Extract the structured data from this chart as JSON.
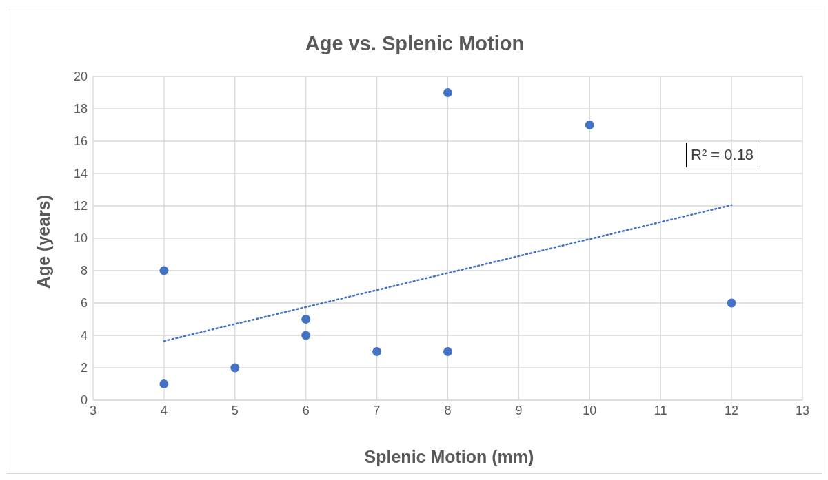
{
  "chart_data": {
    "type": "scatter",
    "title": "Age vs. Splenic Motion",
    "xlabel": "Splenic Motion (mm)",
    "ylabel": "Age (years)",
    "x": [
      4,
      4,
      5,
      6,
      6,
      7,
      8,
      8,
      10,
      12
    ],
    "series": [
      {
        "color": "#4472c4",
        "values": [
          8,
          1,
          2,
          5,
          4,
          3,
          19,
          3,
          17,
          6
        ]
      },
      {
        "type": "line",
        "color": "#4472c4",
        "x": [
          4,
          12
        ],
        "values": [
          3.65,
          12.05
        ],
        "line_style": "dotted",
        "marker": "none"
      }
    ],
    "xlim": [
      3,
      13
    ],
    "xticks": [
      3,
      4,
      5,
      6,
      7,
      8,
      9,
      10,
      11,
      12,
      13
    ],
    "ylim": [
      0,
      20
    ],
    "yticks": [
      0,
      2,
      4,
      6,
      8,
      10,
      12,
      14,
      16,
      18,
      20
    ],
    "grid": true,
    "marker": "circle",
    "annotations": [
      "R² = 0.18"
    ]
  }
}
